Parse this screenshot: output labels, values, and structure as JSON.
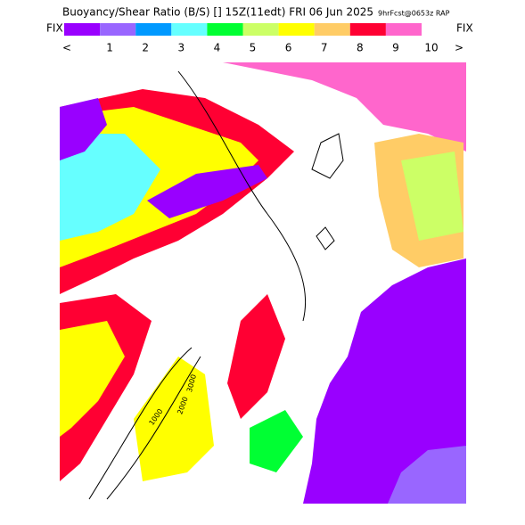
{
  "header": {
    "title": "Buoyancy/Shear Ratio (B/S) [] 15Z(11edt) FRI 06 Jun 2025",
    "subtitle": "9hrFcst@0653z RAP"
  },
  "colorbar": {
    "left_label": "FIX",
    "right_label": "FIX",
    "less": "<",
    "more": ">",
    "colors": [
      "#9900ff",
      "#9966ff",
      "#0099ff",
      "#66ffff",
      "#00ff33",
      "#ccff66",
      "#ffff00",
      "#ffcc66",
      "#ff0033",
      "#ff66cc"
    ],
    "labels": [
      "1",
      "2",
      "3",
      "4",
      "5",
      "6",
      "7",
      "8",
      "9",
      "10"
    ]
  },
  "map": {
    "contour_labels": [
      "1000",
      "2000",
      "3000"
    ]
  }
}
